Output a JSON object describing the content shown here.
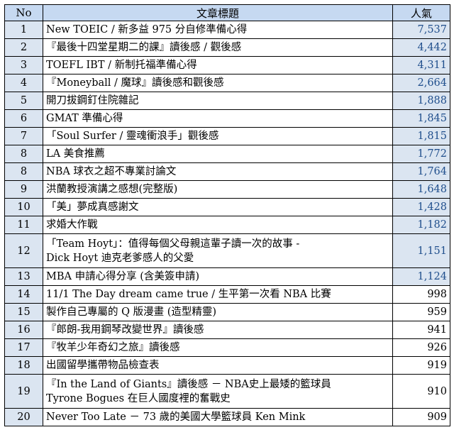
{
  "headers": {
    "no": "No",
    "title": "文章標題",
    "popularity": "人氣"
  },
  "rows": [
    {
      "no": "1",
      "title": [
        "New TOEIC / 新多益 975 分自修準備心得"
      ],
      "views": "7,537",
      "highlight": true
    },
    {
      "no": "2",
      "title": [
        "『最後十四堂星期二的課』讀後感 / 觀後感"
      ],
      "views": "4,442",
      "highlight": true
    },
    {
      "no": "3",
      "title": [
        "TOEFL IBT / 新制托福準備心得"
      ],
      "views": "4,311",
      "highlight": true
    },
    {
      "no": "4",
      "title": [
        "『Moneyball / 魔球』讀後感和觀後感"
      ],
      "views": "2,664",
      "highlight": true
    },
    {
      "no": "5",
      "title": [
        "開刀拔鋼釘住院雜記"
      ],
      "views": "1,888",
      "highlight": true
    },
    {
      "no": "6",
      "title": [
        "GMAT 準備心得"
      ],
      "views": "1,845",
      "highlight": true
    },
    {
      "no": "7",
      "title": [
        "「Soul Surfer / 靈魂衝浪手」觀後感"
      ],
      "views": "1,815",
      "highlight": true
    },
    {
      "no": "8",
      "title": [
        "LA 美食推薦"
      ],
      "views": "1,772",
      "highlight": true
    },
    {
      "no": "8",
      "title": [
        "NBA 球衣之超不專業討論文"
      ],
      "views": "1,764",
      "highlight": true
    },
    {
      "no": "9",
      "title": [
        "洪蘭教授演講之感想(完整版)"
      ],
      "views": "1,648",
      "highlight": true
    },
    {
      "no": "10",
      "title": [
        "「美」夢成真感謝文"
      ],
      "views": "1,428",
      "highlight": true
    },
    {
      "no": "11",
      "title": [
        "求婚大作戰"
      ],
      "views": "1,182",
      "highlight": true
    },
    {
      "no": "12",
      "title": [
        "「Team Hoyt」：值得每個父母親這輩子讀一次的故事 -",
        "Dick Hoyt 迪克老爹感人的父愛"
      ],
      "views": "1,151",
      "highlight": true
    },
    {
      "no": "13",
      "title": [
        "MBA 申請心得分享 (含美簽申請)"
      ],
      "views": "1,124",
      "highlight": true
    },
    {
      "no": "14",
      "title": [
        "11/1 The Day dream came true / 生平第一次看 NBA 比賽"
      ],
      "views": "998",
      "highlight": false
    },
    {
      "no": "15",
      "title": [
        "製作自己專屬的 Q 版漫畫 (造型精靈)"
      ],
      "views": "959",
      "highlight": false
    },
    {
      "no": "16",
      "title": [
        "『郎朗-我用鋼琴改變世界』讀後感"
      ],
      "views": "941",
      "highlight": false
    },
    {
      "no": "17",
      "title": [
        "『牧羊少年奇幻之旅』讀後感"
      ],
      "views": "926",
      "highlight": false
    },
    {
      "no": "18",
      "title": [
        "出國留學攜帶物品檢查表"
      ],
      "views": "919",
      "highlight": false
    },
    {
      "no": "19",
      "title": [
        "『In the Land of Giants』讀後感 － NBA史上最矮的籃球員",
        "Tyrone Bogues 在巨人國度裡的奮戰史"
      ],
      "views": "910",
      "highlight": false
    },
    {
      "no": "20",
      "title": [
        "Never Too Late － 73 歲的美國大學籃球員 Ken Mink"
      ],
      "views": "909",
      "highlight": false
    }
  ]
}
